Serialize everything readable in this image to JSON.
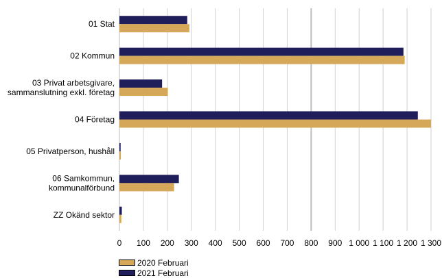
{
  "chart_data": {
    "type": "bar",
    "orientation": "horizontal",
    "categories": [
      [
        "01 Stat"
      ],
      [
        "02 Kommun"
      ],
      [
        "03 Privat arbetsgivare,",
        "sammanslutning exkl. företag"
      ],
      [
        "04 Företag"
      ],
      [
        "05 Privatperson, hushåll"
      ],
      [
        "06 Samkommun,",
        "kommunalförbund"
      ],
      [
        "ZZ Okänd sektor"
      ]
    ],
    "series": [
      {
        "name": "2021 Februari",
        "color": "#1f1d5a",
        "values": [
          283,
          1185,
          178,
          1245,
          5,
          248,
          10
        ]
      },
      {
        "name": "2020 Februari",
        "color": "#d4a858",
        "values": [
          292,
          1190,
          202,
          1300,
          6,
          228,
          8
        ]
      }
    ],
    "x_ticks": [
      "0",
      "100",
      "200",
      "300",
      "400",
      "500",
      "600",
      "700",
      "800",
      "900",
      "1 000",
      "1 100",
      "1 200",
      "1 300"
    ],
    "xlim": [
      0,
      1300
    ],
    "grid": true,
    "legend_position": "bottom-left"
  }
}
